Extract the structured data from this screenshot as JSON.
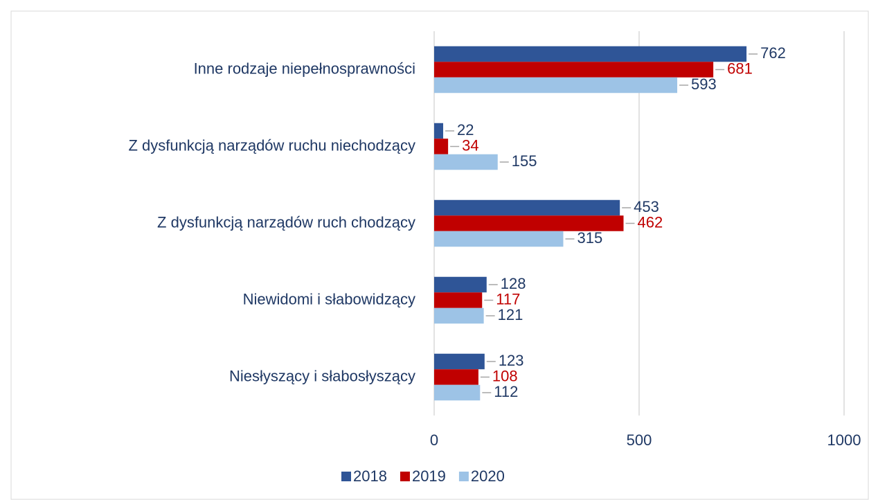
{
  "chart_data": {
    "type": "hbar",
    "categories": [
      "Inne rodzaje niepełnosprawności",
      "Z dysfunkcją narządów ruchu niechodzący",
      "Z dysfunkcją narządów ruch chodzący",
      "Niewidomi i słabowidzący",
      "Niesłyszący i słabosłyszący"
    ],
    "series": [
      {
        "name": "2018",
        "color": "#2f5597",
        "label_color": "#1f3864",
        "values": [
          762,
          22,
          453,
          128,
          123
        ]
      },
      {
        "name": "2019",
        "color": "#c00000",
        "label_color": "#c00000",
        "values": [
          681,
          34,
          462,
          117,
          108
        ]
      },
      {
        "name": "2020",
        "color": "#9dc3e6",
        "label_color": "#1f3864",
        "values": [
          593,
          155,
          315,
          121,
          112
        ]
      }
    ],
    "xlim": [
      0,
      1000
    ],
    "xticks": [
      0,
      500,
      1000
    ],
    "grid": true,
    "legend": "bottom"
  }
}
